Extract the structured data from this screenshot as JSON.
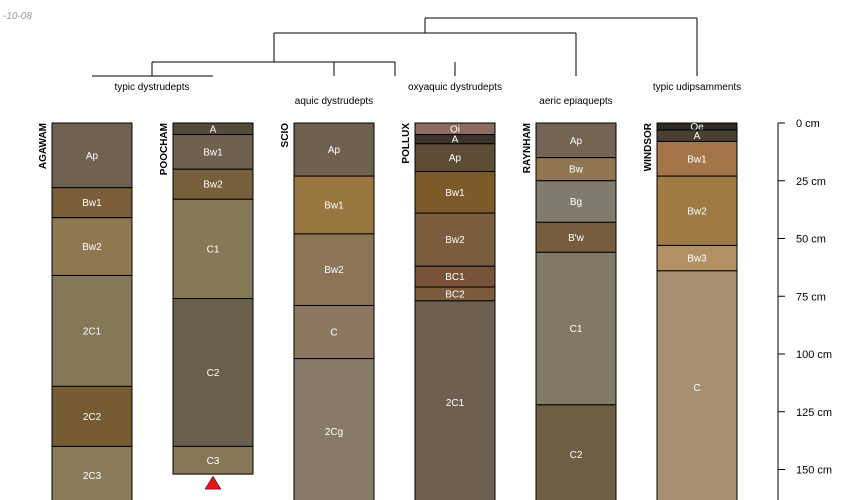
{
  "date_stamp": "-10-08",
  "depth_axis": {
    "unit": "cm",
    "ticks": [
      {
        "depth": 0,
        "label": "0 cm"
      },
      {
        "depth": 25,
        "label": "25 cm"
      },
      {
        "depth": 50,
        "label": "50 cm"
      },
      {
        "depth": 75,
        "label": "75 cm"
      },
      {
        "depth": 100,
        "label": "100 cm"
      },
      {
        "depth": 125,
        "label": "125 cm"
      },
      {
        "depth": 150,
        "label": "150 cm"
      }
    ]
  },
  "taxa": [
    {
      "label": "typic dystrudepts"
    },
    {
      "label": "aquic dystrudepts"
    },
    {
      "label": "oxyaquic dystrudepts"
    },
    {
      "label": "aeric epiaquepts"
    },
    {
      "label": "typic udipsamments"
    }
  ],
  "profiles": [
    {
      "name": "AGAWAM",
      "horizons": [
        {
          "name": "Ap",
          "top": 0,
          "bottom": 28,
          "color": "#6f6252"
        },
        {
          "name": "Bw1",
          "top": 28,
          "bottom": 41,
          "color": "#7b5e38"
        },
        {
          "name": "Bw2",
          "top": 41,
          "bottom": 66,
          "color": "#8f7750"
        },
        {
          "name": "2C1",
          "top": 66,
          "bottom": 114,
          "color": "#857856"
        },
        {
          "name": "2C2",
          "top": 114,
          "bottom": 140,
          "color": "#755c33"
        },
        {
          "name": "2C3",
          "top": 140,
          "bottom": 165,
          "color": "#8a7b59"
        }
      ]
    },
    {
      "name": "POOCHAM",
      "horizons": [
        {
          "name": "A",
          "top": 0,
          "bottom": 5,
          "color": "#564a3a"
        },
        {
          "name": "Bw1",
          "top": 5,
          "bottom": 20,
          "color": "#6f6150"
        },
        {
          "name": "Bw2",
          "top": 20,
          "bottom": 33,
          "color": "#785f3c"
        },
        {
          "name": "C1",
          "top": 33,
          "bottom": 76,
          "color": "#857855"
        },
        {
          "name": "C2",
          "top": 76,
          "bottom": 140,
          "color": "#6a5f4a"
        },
        {
          "name": "C3",
          "top": 140,
          "bottom": 152,
          "color": "#867857"
        }
      ],
      "bottom_marker": true
    },
    {
      "name": "SCIO",
      "horizons": [
        {
          "name": "Ap",
          "top": 0,
          "bottom": 23,
          "color": "#6f6150"
        },
        {
          "name": "Bw1",
          "top": 23,
          "bottom": 48,
          "color": "#9a7640"
        },
        {
          "name": "Bw2",
          "top": 48,
          "bottom": 79,
          "color": "#8c7456"
        },
        {
          "name": "C",
          "top": 79,
          "bottom": 102,
          "color": "#8c7860"
        },
        {
          "name": "2Cg",
          "top": 102,
          "bottom": 165,
          "color": "#877b67"
        }
      ]
    },
    {
      "name": "POLLUX",
      "horizons": [
        {
          "name": "Oi",
          "top": 0,
          "bottom": 5,
          "color": "#8d6b60"
        },
        {
          "name": "A",
          "top": 5,
          "bottom": 9,
          "color": "#3d3328"
        },
        {
          "name": "Ap",
          "top": 9,
          "bottom": 21,
          "color": "#5d4d37"
        },
        {
          "name": "Bw1",
          "top": 21,
          "bottom": 39,
          "color": "#7d5a2a"
        },
        {
          "name": "Bw2",
          "top": 39,
          "bottom": 62,
          "color": "#7a5d3d"
        },
        {
          "name": "BC1",
          "top": 62,
          "bottom": 71,
          "color": "#795339"
        },
        {
          "name": "BC2",
          "top": 71,
          "bottom": 77,
          "color": "#7a5b3b"
        },
        {
          "name": "2C1",
          "top": 77,
          "bottom": 165,
          "color": "#6d6050"
        }
      ]
    },
    {
      "name": "RAYNHAM",
      "horizons": [
        {
          "name": "Ap",
          "top": 0,
          "bottom": 15,
          "color": "#736453"
        },
        {
          "name": "Bw",
          "top": 15,
          "bottom": 25,
          "color": "#8f7650"
        },
        {
          "name": "Bg",
          "top": 25,
          "bottom": 43,
          "color": "#827a6a"
        },
        {
          "name": "B'w",
          "top": 43,
          "bottom": 56,
          "color": "#775d3f"
        },
        {
          "name": "C1",
          "top": 56,
          "bottom": 122,
          "color": "#827964"
        },
        {
          "name": "C2",
          "top": 122,
          "bottom": 165,
          "color": "#6b5f44"
        }
      ]
    },
    {
      "name": "WINDSOR",
      "horizons": [
        {
          "name": "Oe",
          "top": 0,
          "bottom": 3,
          "color": "#2e2a26"
        },
        {
          "name": "A",
          "top": 3,
          "bottom": 8,
          "color": "#4b3f33"
        },
        {
          "name": "Bw1",
          "top": 8,
          "bottom": 23,
          "color": "#a5754a"
        },
        {
          "name": "Bw2",
          "top": 23,
          "bottom": 53,
          "color": "#9f7a43"
        },
        {
          "name": "Bw3",
          "top": 53,
          "bottom": 64,
          "color": "#b29063"
        },
        {
          "name": "C",
          "top": 64,
          "bottom": 165,
          "color": "#a78f72"
        }
      ]
    }
  ]
}
